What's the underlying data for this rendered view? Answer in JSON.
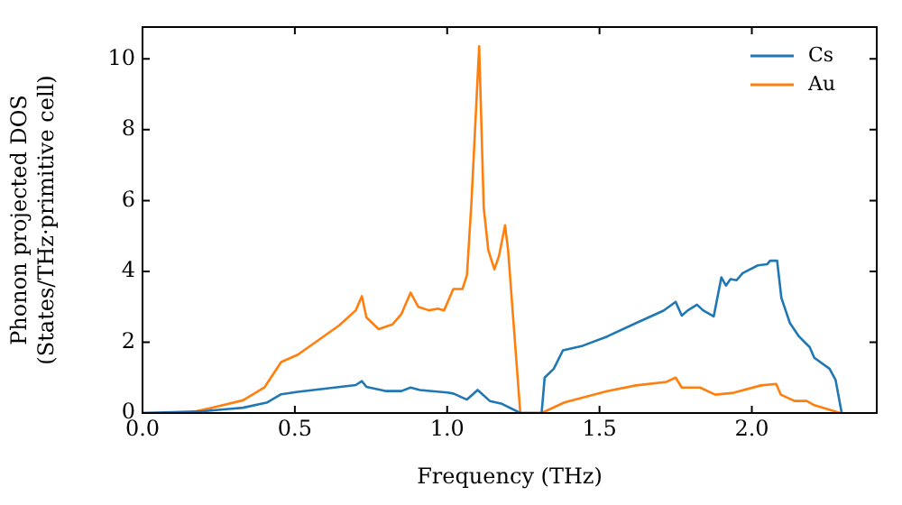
{
  "chart_data": {
    "type": "line",
    "xlabel": "Frequency (THz)",
    "ylabel": "Phonon projected DOS\n(States/THz·primitive cell)",
    "xlim": [
      0,
      2.41
    ],
    "ylim": [
      0,
      10.9
    ],
    "xticks": [
      {
        "value": 0,
        "label": "0.0"
      },
      0.5,
      {
        "value": 1,
        "label": "1.0"
      },
      1.5,
      {
        "value": 2,
        "label": "2.0"
      }
    ],
    "yticks": [
      0,
      2,
      4,
      6,
      8,
      10
    ],
    "grid": false,
    "legend": "top right",
    "marker": "none",
    "line_style": "solid",
    "series": [
      {
        "name": "Cs",
        "color": "#1f77b4",
        "x": [
          0,
          0.2,
          0.33,
          0.41,
          0.455,
          0.51,
          0.7,
          0.72,
          0.735,
          0.8,
          0.85,
          0.88,
          0.91,
          1.0,
          1.02,
          1.065,
          1.1,
          1.14,
          1.18,
          1.24,
          1.31,
          1.32,
          1.35,
          1.38,
          1.445,
          1.525,
          1.62,
          1.71,
          1.75,
          1.77,
          1.79,
          1.82,
          1.84,
          1.875,
          1.9,
          1.915,
          1.93,
          1.95,
          1.97,
          2.02,
          2.05,
          2.06,
          2.083,
          2.097,
          2.125,
          2.155,
          2.19,
          2.205,
          2.255,
          2.275,
          2.295
        ],
        "values": [
          0,
          0.05,
          0.15,
          0.3,
          0.53,
          0.6,
          0.79,
          0.9,
          0.74,
          0.62,
          0.62,
          0.72,
          0.65,
          0.58,
          0.55,
          0.38,
          0.65,
          0.34,
          0.26,
          0,
          0,
          1.0,
          1.25,
          1.77,
          1.9,
          2.16,
          2.54,
          2.89,
          3.14,
          2.75,
          2.9,
          3.06,
          2.9,
          2.73,
          3.83,
          3.6,
          3.78,
          3.75,
          3.95,
          4.17,
          4.2,
          4.3,
          4.3,
          3.25,
          2.54,
          2.16,
          1.86,
          1.56,
          1.25,
          0.93,
          0
        ]
      },
      {
        "name": "Au",
        "color": "#ff7f0e",
        "x": [
          0,
          0.15,
          0.23,
          0.33,
          0.4,
          0.455,
          0.51,
          0.645,
          0.7,
          0.72,
          0.735,
          0.775,
          0.82,
          0.85,
          0.88,
          0.905,
          0.94,
          0.97,
          0.99,
          1.02,
          1.05,
          1.065,
          1.08,
          1.105,
          1.12,
          1.135,
          1.155,
          1.17,
          1.19,
          1.2,
          1.24,
          1.31,
          1.385,
          1.525,
          1.62,
          1.72,
          1.75,
          1.77,
          1.83,
          1.88,
          1.94,
          2.03,
          2.08,
          2.095,
          2.14,
          2.18,
          2.205,
          2.29
        ],
        "values": [
          0,
          0,
          0.15,
          0.36,
          0.72,
          1.44,
          1.65,
          2.47,
          2.9,
          3.3,
          2.7,
          2.37,
          2.5,
          2.8,
          3.4,
          3.0,
          2.9,
          2.95,
          2.9,
          3.5,
          3.5,
          3.9,
          6.0,
          10.36,
          5.8,
          4.6,
          4.06,
          4.43,
          5.3,
          4.6,
          0,
          0,
          0.3,
          0.62,
          0.78,
          0.88,
          1.0,
          0.72,
          0.72,
          0.52,
          0.57,
          0.78,
          0.82,
          0.52,
          0.34,
          0.34,
          0.22,
          0
        ]
      }
    ]
  }
}
